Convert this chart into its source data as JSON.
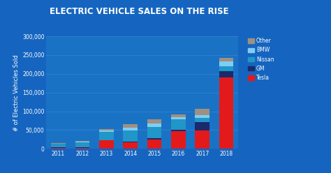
{
  "title": "ELECTRIC VEHICLE SALES ON THE RISE",
  "ylabel": "# of Electric Vehicles Sold",
  "years": [
    2011,
    2012,
    2013,
    2014,
    2015,
    2016,
    2017,
    2018
  ],
  "tesla": [
    2500,
    2650,
    22000,
    17000,
    25000,
    47000,
    48000,
    190000
  ],
  "gm": [
    1000,
    1000,
    1500,
    2500,
    3000,
    3500,
    23000,
    18000
  ],
  "nissan": [
    9800,
    14000,
    22000,
    30000,
    31000,
    28000,
    11500,
    13000
  ],
  "bmw": [
    500,
    1500,
    3500,
    7000,
    9000,
    6500,
    7500,
    12000
  ],
  "other": [
    1200,
    2000,
    3000,
    9000,
    10000,
    7000,
    16000,
    10000
  ],
  "colors": {
    "tesla": "#e31a1c",
    "gm": "#1a2a6c",
    "nissan": "#2196c8",
    "bmw": "#7ecef4",
    "other": "#a09080"
  },
  "ylim": [
    0,
    300000
  ],
  "yticks": [
    0,
    50000,
    100000,
    150000,
    200000,
    250000,
    300000
  ],
  "bg_outer": "#1565c0",
  "bg_plot": "#1a72c5",
  "grid_color": "#4a90d9",
  "text_color": "#ffffff",
  "title_fontsize": 8.5,
  "label_fontsize": 6,
  "tick_fontsize": 5.5,
  "legend_fontsize": 5.5
}
